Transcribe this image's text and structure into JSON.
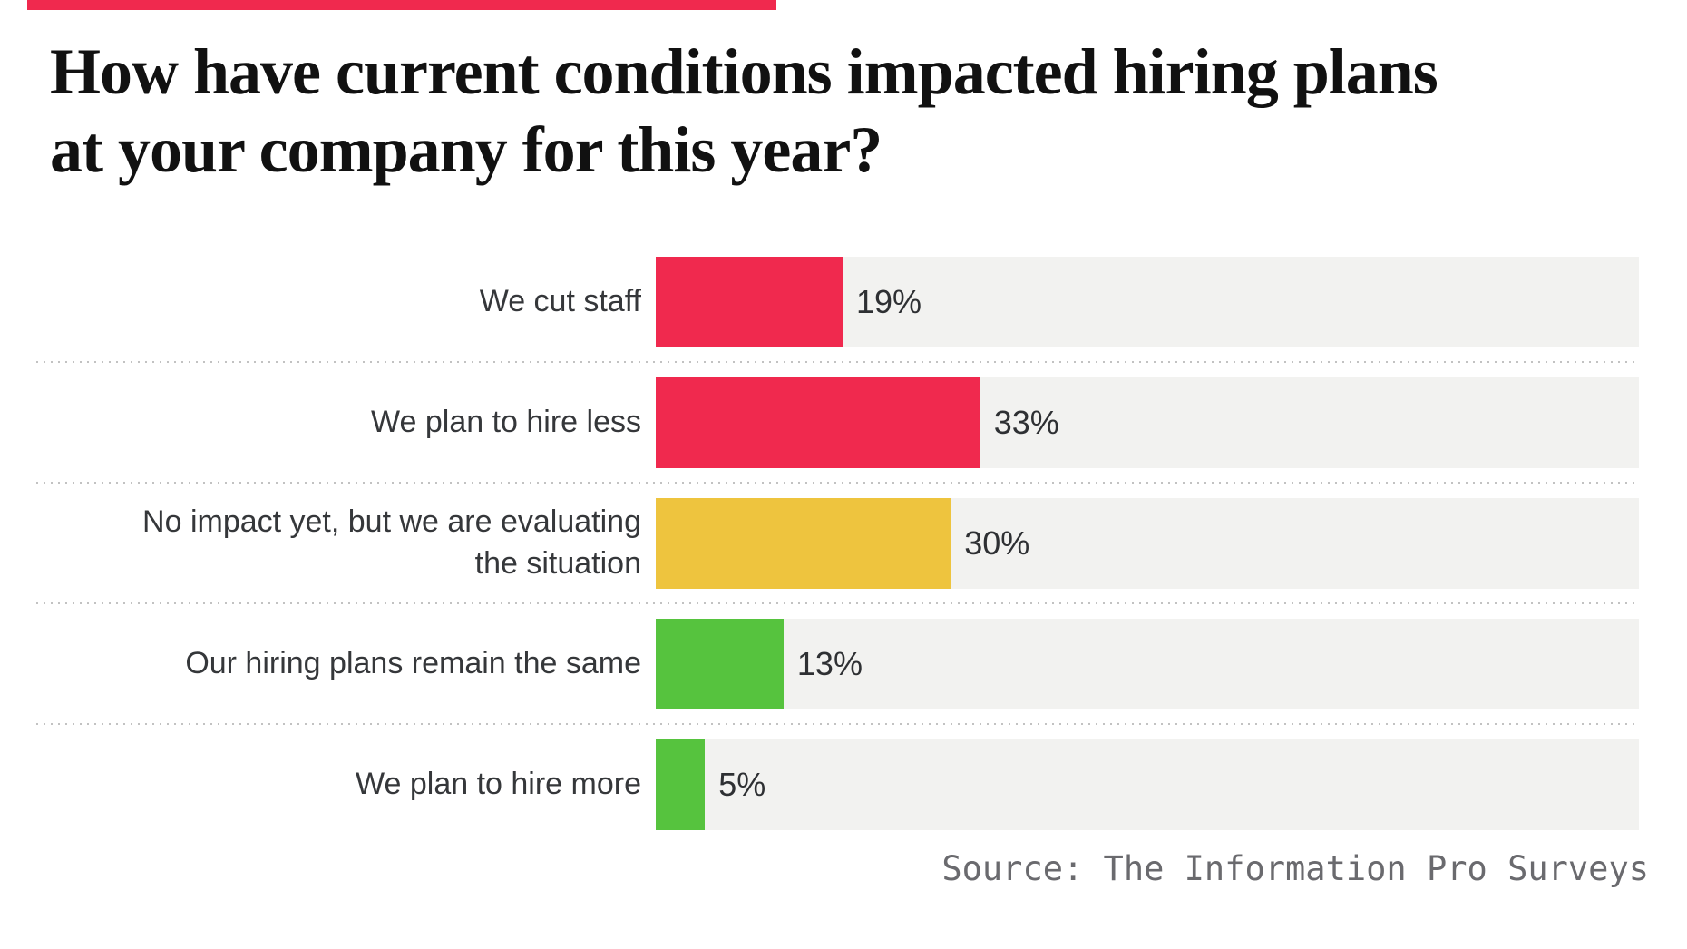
{
  "title": {
    "text": "How have current conditions impacted hiring plans\nat your company for this year?"
  },
  "source": {
    "text": "Source: The Information Pro Surveys"
  },
  "colors": {
    "accent": "#F0294E",
    "red": "#F0294E",
    "yellow": "#EEC43E",
    "green": "#56C33E",
    "track": "#F2F2F0",
    "title_text": "#111111",
    "label_text": "#35373A",
    "value_text": "#2E3033",
    "source_text": "#6A6A6E",
    "separator": "#C2C2C2"
  },
  "chart_data": {
    "type": "bar",
    "orientation": "horizontal",
    "title": "How have current conditions impacted hiring plans at your company for this year?",
    "categories": [
      "We cut staff",
      "We plan to hire less",
      "No impact yet, but we are evaluating the situation",
      "Our hiring plans remain the same",
      "We plan to hire more"
    ],
    "values": [
      19,
      33,
      30,
      13,
      5
    ],
    "value_labels": [
      "19%",
      "33%",
      "30%",
      "13%",
      "5%"
    ],
    "bar_colors": [
      "#F0294E",
      "#F0294E",
      "#EEC43E",
      "#56C33E",
      "#56C33E"
    ],
    "xlim": [
      0,
      100
    ],
    "grid": false,
    "legend": false,
    "source": "Source: The Information Pro Surveys"
  },
  "rows": [
    {
      "label": "We cut staff",
      "pct": "19%"
    },
    {
      "label": "We plan to hire less",
      "pct": "33%"
    },
    {
      "label": "No impact yet, but we are evaluating\nthe situation",
      "pct": "30%"
    },
    {
      "label": "Our hiring plans remain the same",
      "pct": "13%"
    },
    {
      "label": "We plan to hire more",
      "pct": "5%"
    }
  ]
}
